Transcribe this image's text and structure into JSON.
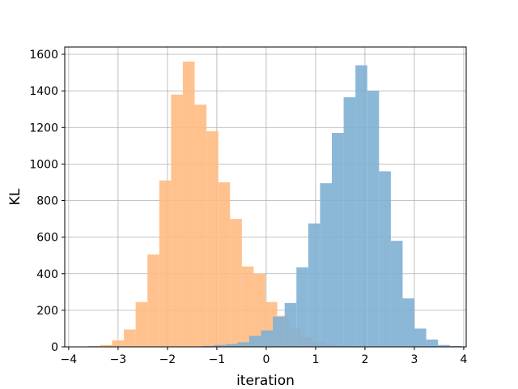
{
  "chart_data": {
    "type": "bar",
    "title": "",
    "xlabel": "iteration",
    "ylabel": "KL",
    "xlim": [
      -4.08,
      4.05
    ],
    "ylim": [
      0,
      1640
    ],
    "xticks": [
      -4,
      -3,
      -2,
      -1,
      0,
      1,
      2,
      3,
      4
    ],
    "xtick_labels": [
      "−4",
      "−3",
      "−2",
      "−1",
      "0",
      "1",
      "2",
      "3",
      "4"
    ],
    "yticks": [
      0,
      200,
      400,
      600,
      800,
      1000,
      1200,
      1400,
      1600
    ],
    "ytick_labels": [
      "0",
      "200",
      "400",
      "600",
      "800",
      "1000",
      "1200",
      "1400",
      "1600"
    ],
    "grid": true,
    "legend": false,
    "series": [
      {
        "color": "#ffbb83",
        "bin_start": -3.6,
        "bin_width": 0.239,
        "values": [
          5,
          10,
          35,
          95,
          245,
          505,
          910,
          1380,
          1560,
          1325,
          1180,
          900,
          700,
          440,
          400,
          245,
          170,
          100,
          55,
          25,
          15,
          8,
          4,
          2
        ]
      },
      {
        "color": "#7fb0d4",
        "bin_start": -1.3,
        "bin_width": 0.239,
        "values": [
          5,
          10,
          15,
          25,
          60,
          90,
          165,
          240,
          435,
          675,
          895,
          1170,
          1365,
          1540,
          1400,
          960,
          580,
          265,
          100,
          40,
          10,
          5
        ]
      }
    ]
  }
}
